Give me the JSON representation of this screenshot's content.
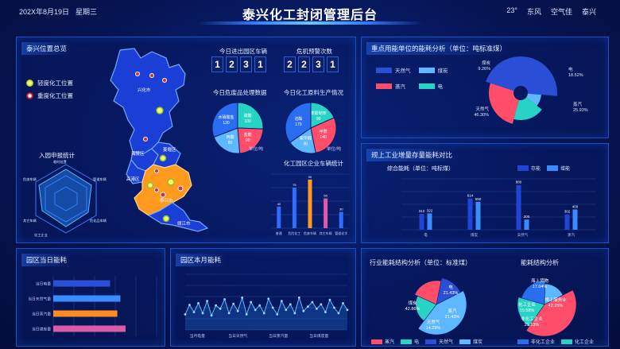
{
  "header": {
    "date": "202X年8月19日",
    "weekday": "星期三",
    "title": "泰兴化工封闭管理后台",
    "temp": "23°",
    "wind": "东风",
    "air": "空气佳",
    "city": "泰兴"
  },
  "map_panel": {
    "title": "泰兴位置总览",
    "legend": [
      "轻度化工位置",
      "重度化工位置"
    ],
    "places": [
      "兴化市",
      "海陵区",
      "姜堰区",
      "高港区",
      "泰兴市",
      "靖江市"
    ],
    "radar_title": "入园申报统计",
    "radar_axes": [
      "临时处置",
      "管道车辆",
      "危化品车辆",
      "化工企业",
      "其它车辆",
      "危废车辆"
    ]
  },
  "vehicles": {
    "label": "今日进出园区车辆",
    "digits": [
      "1",
      "2",
      "3",
      "1"
    ]
  },
  "warnings": {
    "label": "危机预警次数",
    "digits": [
      "2",
      "2",
      "3",
      "1"
    ]
  },
  "waste_pie": {
    "title": "今日危废品处理数据",
    "unit": "单位/吨",
    "slices": [
      {
        "name": "硫酸",
        "value": 100,
        "color": "#27d3c4"
      },
      {
        "name": "盐酸",
        "value": 90,
        "color": "#ff4d6a"
      },
      {
        "name": "丙酸",
        "value": 80,
        "color": "#5db8ff"
      },
      {
        "name": "水硝酸盐",
        "value": 120,
        "color": "#2a6df0"
      }
    ]
  },
  "material_pie": {
    "title": "今日化工原料生产情况",
    "unit": "单位/吨",
    "slices": [
      {
        "name": "苯酚制苯",
        "value": 90,
        "color": "#27d3c4"
      },
      {
        "name": "甲醇",
        "value": 140,
        "color": "#ff4d6a"
      },
      {
        "name": "聚甲醛",
        "value": 90,
        "color": "#5db8ff"
      },
      {
        "name": "溶酯",
        "value": 170,
        "color": "#2a6df0"
      }
    ]
  },
  "vehicle_stats": {
    "title": "化工园区企业车辆统计",
    "chart_data": {
      "type": "bar",
      "categories": [
        "普通",
        "危险化工",
        "危废车辆",
        "其它车辆",
        "管道化学"
      ],
      "values": [
        40,
        75,
        90,
        55,
        30
      ],
      "ylim": [
        0,
        100
      ]
    }
  },
  "energy_pie": {
    "title": "重点用能单位的能耗分析（单位：吨标准煤）",
    "legend": [
      "天然气",
      "煤炭",
      "蒸汽",
      "电"
    ],
    "chart_data": {
      "type": "pie",
      "slices": [
        {
          "name": "天然气",
          "value": 46.3,
          "color": "#2a4fd6"
        },
        {
          "name": "煤炭",
          "value": 9.26,
          "color": "#5db8ff"
        },
        {
          "name": "电",
          "value": 18.52,
          "color": "#27d3c4"
        },
        {
          "name": "蒸汽",
          "value": 25.93,
          "color": "#ff4d6a"
        }
      ]
    },
    "labels": [
      {
        "name": "煤炭",
        "pct": "9.26%"
      },
      {
        "name": "电",
        "pct": "18.52%"
      },
      {
        "name": "蒸汽",
        "pct": "25.93%"
      },
      {
        "name": "天然气",
        "pct": "46.30%"
      }
    ]
  },
  "industry_compare": {
    "title": "规上工业增量存量能耗对比",
    "subtitle": "综合能耗（单位：吨标煤）",
    "legend": [
      "存能",
      "增能"
    ],
    "chart_data": {
      "type": "bar",
      "categories": [
        "电",
        "煤炭",
        "天然气",
        "蒸汽"
      ],
      "series": [
        {
          "name": "存能",
          "values": [
            312,
            614,
            880,
            302
          ],
          "color": "#2244d6"
        },
        {
          "name": "增能",
          "values": [
            322,
            550,
            200,
            400
          ],
          "color": "#3a8bff"
        }
      ],
      "ylim": [
        0,
        1000
      ]
    }
  },
  "park_daily": {
    "title": "园区当日能耗",
    "chart_data": {
      "type": "bar",
      "categories": [
        "当日电量",
        "当日天然气量",
        "当日蒸汽量",
        "当日煤炭量"
      ],
      "values": [
        55,
        65,
        62,
        70
      ],
      "ylim": [
        0,
        100
      ],
      "colors": [
        "#2a4fd6",
        "#3a8bff",
        "#ff8a1f",
        "#d85aa8"
      ]
    },
    "axis_labels": [
      "当日电量",
      "当日天然气量",
      "当日蒸汽量",
      "当日煤炭量"
    ]
  },
  "park_monthly": {
    "title": "园区本月能耗",
    "chart_data": {
      "type": "line",
      "values": [
        28,
        45,
        32,
        48,
        30,
        52,
        26,
        44,
        38,
        55,
        30,
        47,
        34,
        58,
        28,
        50,
        36,
        44,
        30,
        56,
        40,
        28,
        52,
        36,
        46,
        30,
        58,
        34,
        42,
        50,
        38,
        46,
        32,
        54,
        40,
        30,
        48,
        36
      ],
      "ylim": [
        0,
        100
      ]
    },
    "axis_labels": [
      "当月电量",
      "当日天然气",
      "当日蒸汽量",
      "当日煤炭量"
    ]
  },
  "structure_left": {
    "title": "行业能耗结构分析（单位：标准煤）",
    "chart_data": {
      "type": "pie",
      "slices": [
        {
          "name": "煤炭",
          "value": 42.86,
          "color": "#5db8ff"
        },
        {
          "name": "电",
          "value": 21.43,
          "color": "#27d3c4"
        },
        {
          "name": "蒸汽",
          "value": 21.43,
          "color": "#ff4d6a"
        },
        {
          "name": "天然气",
          "value": 14.29,
          "color": "#2a4fd6"
        }
      ]
    },
    "labels": [
      {
        "name": "煤炭",
        "pct": "42.86%"
      },
      {
        "name": "电",
        "pct": "21.43%"
      },
      {
        "name": "蒸汽",
        "pct": "21.43%"
      },
      {
        "name": "天然气",
        "pct": "14.29%"
      }
    ],
    "legend": [
      "蒸汽",
      "电",
      "天然气",
      "煤炭"
    ]
  },
  "structure_right": {
    "title": "能耗结构分析",
    "chart_data": {
      "type": "pie",
      "slices": [
        {
          "name": "规上服务业",
          "value": 42.25,
          "color": "#ff4d6a"
        },
        {
          "name": "化工企业",
          "value": 19.58,
          "color": "#27d3c4"
        },
        {
          "name": "非化工企业",
          "value": 21.13,
          "color": "#2a6df0"
        },
        {
          "name": "海上货物",
          "value": 17.04,
          "color": "#5db8ff"
        }
      ]
    },
    "labels": [
      {
        "name": "海上货物",
        "pct": "17.04%"
      },
      {
        "name": "规上服务业",
        "pct": "42.25%"
      },
      {
        "name": "化工企业",
        "pct": "19.58%"
      },
      {
        "name": "非化工企业",
        "pct": "21.13%"
      }
    ],
    "legend": [
      "非化工企业",
      "化工企业"
    ]
  },
  "watermark": "致图网"
}
